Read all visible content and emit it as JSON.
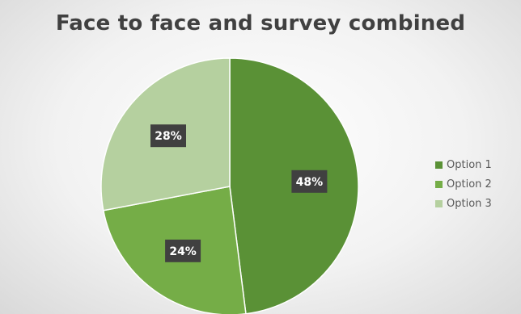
{
  "chart_data": {
    "type": "pie",
    "title": "Face to face and survey combined",
    "categories": [
      "Option 1",
      "Option 2",
      "Option 3"
    ],
    "values": [
      48,
      24,
      28
    ],
    "data_labels": [
      "48%",
      "24%",
      "28%"
    ],
    "colors": [
      "#5a9136",
      "#75ad47",
      "#b5d09f"
    ],
    "legend_placement": "right"
  }
}
